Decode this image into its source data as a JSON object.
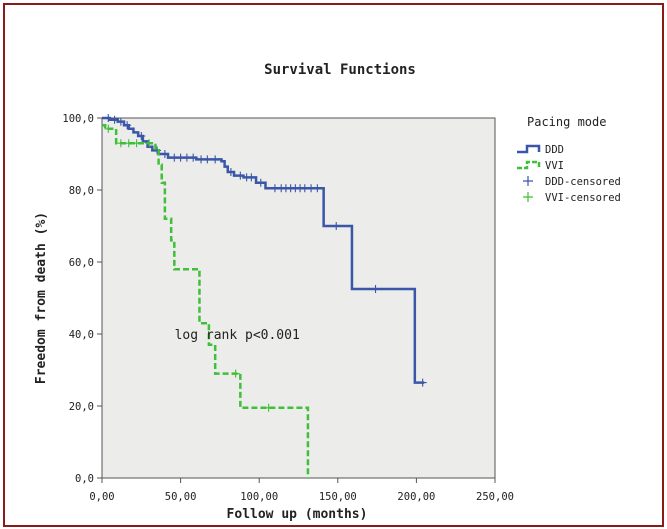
{
  "chart_data": {
    "type": "line",
    "subtype": "kaplan-meier-step",
    "title": "Survival Functions",
    "xlabel": "Follow up (months)",
    "ylabel": "Freedom from death (%)",
    "xlim": [
      0,
      250
    ],
    "ylim": [
      0,
      100
    ],
    "x_ticks": [
      0,
      50,
      100,
      150,
      200,
      250
    ],
    "x_tick_labels": [
      "0,00",
      "50,00",
      "100,00",
      "150,00",
      "200,00",
      "250,00"
    ],
    "y_ticks": [
      0,
      20,
      40,
      60,
      80,
      100
    ],
    "y_tick_labels": [
      "0,0",
      "20,0",
      "40,0",
      "60,0",
      "80,0",
      "100,0"
    ],
    "grid": false,
    "background": "#ececea",
    "legend": {
      "title": "Pacing mode",
      "placement": "right",
      "entries": [
        {
          "label": "DDD",
          "kind": "line",
          "color": "#3a56a8",
          "dash": "solid"
        },
        {
          "label": "VVI",
          "kind": "line",
          "color": "#3fbf3a",
          "dash": "dashed"
        },
        {
          "label": "DDD-censored",
          "kind": "cross",
          "color": "#3a56a8"
        },
        {
          "label": "VVI-censored",
          "kind": "cross",
          "color": "#3fbf3a"
        }
      ]
    },
    "annotations": [
      {
        "text": "log rank p<0.001",
        "x": 86,
        "y": 40
      }
    ],
    "series": [
      {
        "name": "DDD",
        "color": "#3a56a8",
        "dash": "solid",
        "steps": [
          [
            0,
            100
          ],
          [
            5,
            99.5
          ],
          [
            10,
            99
          ],
          [
            14,
            98
          ],
          [
            17,
            97
          ],
          [
            20,
            96
          ],
          [
            23,
            95
          ],
          [
            26,
            93.5
          ],
          [
            29,
            92
          ],
          [
            32,
            91
          ],
          [
            36,
            90
          ],
          [
            42,
            89
          ],
          [
            60,
            88.5
          ],
          [
            76,
            88
          ],
          [
            78,
            86.5
          ],
          [
            80,
            85
          ],
          [
            84,
            84
          ],
          [
            90,
            83.5
          ],
          [
            98,
            82
          ],
          [
            104,
            80.5
          ],
          [
            141,
            70
          ],
          [
            159,
            52.5
          ],
          [
            199,
            26.5
          ],
          [
            205,
            26.5
          ]
        ],
        "censored": [
          [
            4,
            100
          ],
          [
            8,
            99.5
          ],
          [
            12,
            99
          ],
          [
            16,
            98
          ],
          [
            25,
            95
          ],
          [
            35,
            91
          ],
          [
            40,
            90
          ],
          [
            46,
            89
          ],
          [
            50,
            89
          ],
          [
            54,
            89
          ],
          [
            58,
            89
          ],
          [
            63,
            88.5
          ],
          [
            67,
            88.5
          ],
          [
            72,
            88.5
          ],
          [
            82,
            85
          ],
          [
            88,
            84
          ],
          [
            92,
            83.5
          ],
          [
            95,
            83.5
          ],
          [
            101,
            82
          ],
          [
            110,
            80.5
          ],
          [
            114,
            80.5
          ],
          [
            117,
            80.5
          ],
          [
            120,
            80.5
          ],
          [
            123,
            80.5
          ],
          [
            126,
            80.5
          ],
          [
            129,
            80.5
          ],
          [
            133,
            80.5
          ],
          [
            137,
            80.5
          ],
          [
            149,
            70
          ],
          [
            174,
            52.5
          ],
          [
            204,
            26.5
          ]
        ]
      },
      {
        "name": "VVI",
        "color": "#3fbf3a",
        "dash": "dashed",
        "steps": [
          [
            0,
            98
          ],
          [
            2,
            97
          ],
          [
            9,
            93
          ],
          [
            34,
            91
          ],
          [
            36,
            87
          ],
          [
            38,
            82
          ],
          [
            40,
            72
          ],
          [
            44,
            66
          ],
          [
            46,
            58
          ],
          [
            62,
            43
          ],
          [
            68,
            37
          ],
          [
            72,
            29
          ],
          [
            88,
            19.5
          ],
          [
            131,
            0
          ]
        ],
        "censored": [
          [
            4,
            97
          ],
          [
            12,
            93
          ],
          [
            17,
            93
          ],
          [
            22,
            93
          ],
          [
            30,
            93
          ],
          [
            85,
            29
          ],
          [
            106,
            19.5
          ]
        ]
      }
    ]
  }
}
